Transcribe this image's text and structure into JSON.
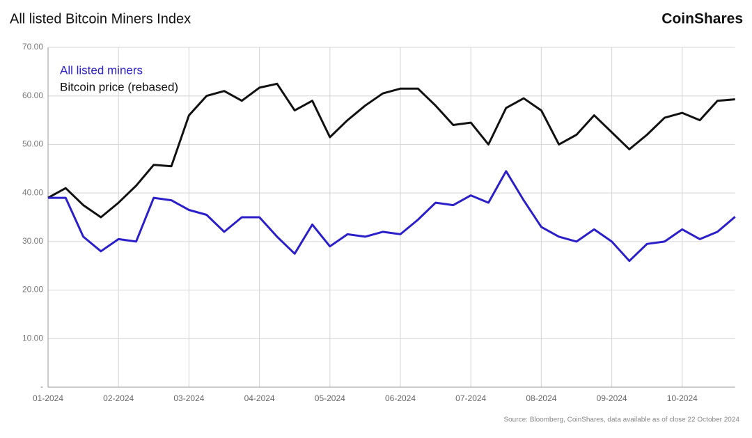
{
  "chart_data": {
    "type": "line",
    "title": "All listed Bitcoin Miners Index",
    "brand": "CoinShares",
    "source": "Source: Bloomberg, CoinShares, data available as of close 22 October 2024",
    "categories": [
      "01-2024",
      null,
      null,
      null,
      "02-2024",
      null,
      null,
      null,
      "03-2024",
      null,
      null,
      null,
      "04-2024",
      null,
      null,
      null,
      "05-2024",
      null,
      null,
      null,
      "06-2024",
      null,
      null,
      null,
      "07-2024",
      null,
      null,
      null,
      "08-2024",
      null,
      null,
      null,
      "09-2024",
      null,
      null,
      null,
      "10-2024",
      null,
      null,
      null
    ],
    "series": [
      {
        "name": "All listed miners",
        "color": "#2a1fc9",
        "values": [
          39,
          39,
          31,
          28,
          30.5,
          30,
          39,
          38.5,
          36.5,
          35.5,
          32,
          35,
          35,
          31,
          27.5,
          33.5,
          29,
          31.5,
          31,
          32,
          31.5,
          34.5,
          38,
          37.5,
          39.5,
          38,
          44.5,
          38.5,
          33,
          31,
          30,
          32.5,
          30,
          26,
          29.5,
          30,
          32.5,
          30.5,
          32,
          35.1
        ]
      },
      {
        "name": "Bitcoin price (rebased)",
        "color": "#111111",
        "values": [
          39,
          41,
          37.5,
          35,
          38,
          41.5,
          45.8,
          45.5,
          56,
          60,
          61,
          59,
          61.7,
          62.5,
          57,
          59,
          51.5,
          55,
          58,
          60.5,
          61.5,
          61.5,
          58,
          54,
          54.5,
          50,
          57.5,
          59.5,
          57,
          50,
          52,
          56,
          52.5,
          49,
          52,
          55.5,
          56.5,
          55,
          59,
          59.3
        ]
      }
    ],
    "ylim": [
      0,
      70
    ],
    "yticks": [
      {
        "value": 0,
        "label": "-"
      },
      {
        "value": 10,
        "label": "10.00"
      },
      {
        "value": 20,
        "label": "20.00"
      },
      {
        "value": 30,
        "label": "30.00"
      },
      {
        "value": 40,
        "label": "40.00"
      },
      {
        "value": 50,
        "label": "50.00"
      },
      {
        "value": 60,
        "label": "60.00"
      },
      {
        "value": 70,
        "label": "70.00"
      }
    ],
    "grid": true,
    "legend": "top-left"
  }
}
